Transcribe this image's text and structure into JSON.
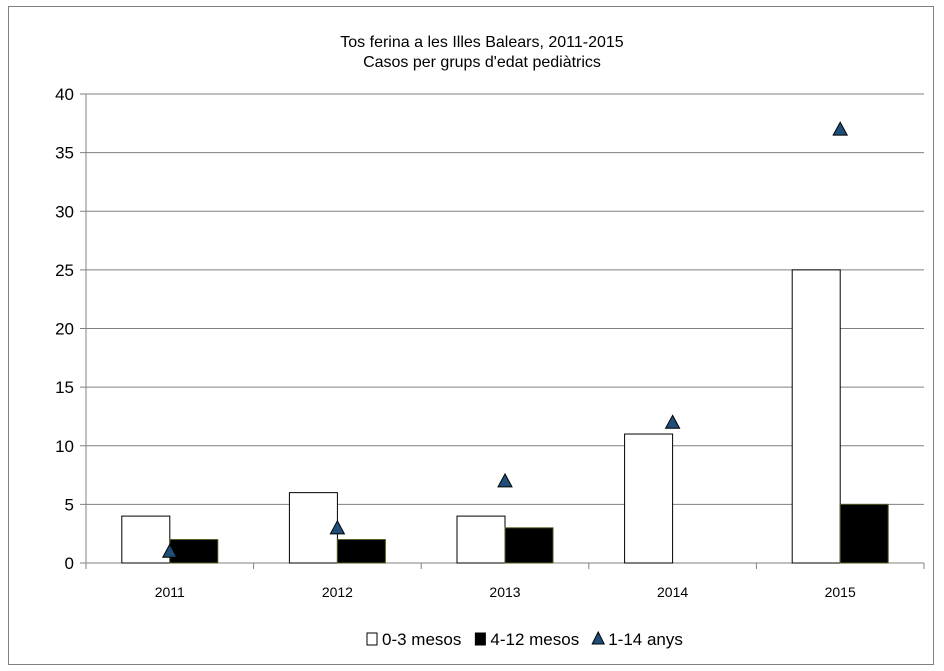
{
  "chart_data": {
    "type": "bar",
    "title": "Tos ferina a les Illes Balears, 2011-2015",
    "subtitle": "Casos per grups d'edat pediàtrics",
    "categories": [
      "2011",
      "2012",
      "2013",
      "2014",
      "2015"
    ],
    "series": [
      {
        "name": "0-3 mesos",
        "type": "bar",
        "values": [
          4,
          6,
          4,
          11,
          25
        ],
        "color": "#ffffff",
        "stroke": "#000000"
      },
      {
        "name": "4-12 mesos",
        "type": "bar",
        "values": [
          2,
          2,
          3,
          0,
          5
        ],
        "color": "#000000",
        "stroke": "#4d5a1e"
      },
      {
        "name": "1-14 anys",
        "type": "marker-triangle",
        "values": [
          1,
          3,
          7,
          12,
          37
        ],
        "color": "#1f4e79",
        "stroke": "#000000"
      }
    ],
    "ylim": [
      0,
      40
    ],
    "yticks": [
      0,
      5,
      10,
      15,
      20,
      25,
      30,
      35,
      40
    ],
    "grid": true,
    "legend_position": "bottom"
  }
}
